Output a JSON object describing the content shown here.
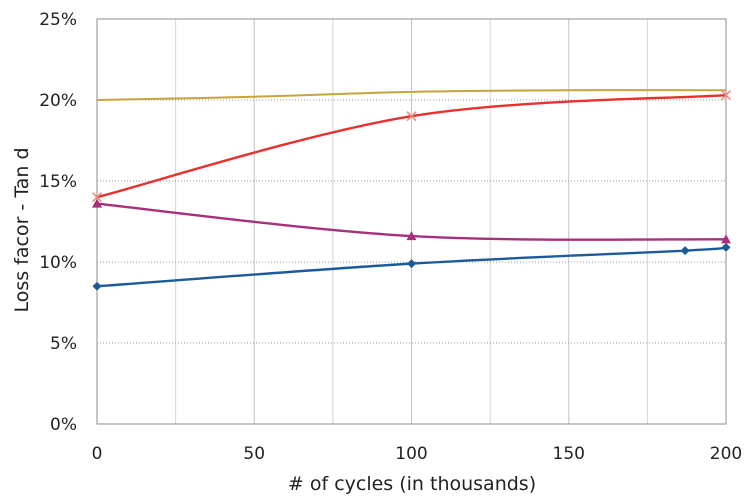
{
  "chart_data": {
    "type": "line",
    "title": "",
    "xlabel": "# of cycles (in thousands)",
    "ylabel": "Loss facor - Tan d",
    "xlim": [
      0,
      200
    ],
    "ylim": [
      0,
      25
    ],
    "x_ticks": [
      0,
      50,
      100,
      150,
      200
    ],
    "x_tick_labels": [
      "0",
      "50",
      "100",
      "150",
      "200"
    ],
    "y_ticks": [
      0,
      5,
      10,
      15,
      20,
      25
    ],
    "y_tick_labels": [
      "0%",
      "5%",
      "10%",
      "15%",
      "20%",
      "25%"
    ],
    "grid": true,
    "legend": "none",
    "series": [
      {
        "color": "#c8a53a",
        "marker": "none",
        "points": [
          [
            0,
            20.0
          ],
          [
            50,
            20.2
          ],
          [
            100,
            20.5
          ],
          [
            150,
            20.6
          ],
          [
            200,
            20.6
          ]
        ]
      },
      {
        "color": "#e8302f",
        "marker": "x",
        "points": [
          [
            0,
            14.0
          ],
          [
            100,
            19.0
          ],
          [
            200,
            20.3
          ]
        ]
      },
      {
        "color": "#a8307a",
        "marker": "triangle",
        "points": [
          [
            0,
            13.6
          ],
          [
            100,
            11.6
          ],
          [
            200,
            11.4
          ]
        ]
      },
      {
        "color": "#1c5a9a",
        "marker": "diamond",
        "points": [
          [
            0,
            8.5
          ],
          [
            100,
            9.9
          ],
          [
            187,
            10.7
          ],
          [
            200,
            10.9
          ]
        ]
      }
    ]
  }
}
